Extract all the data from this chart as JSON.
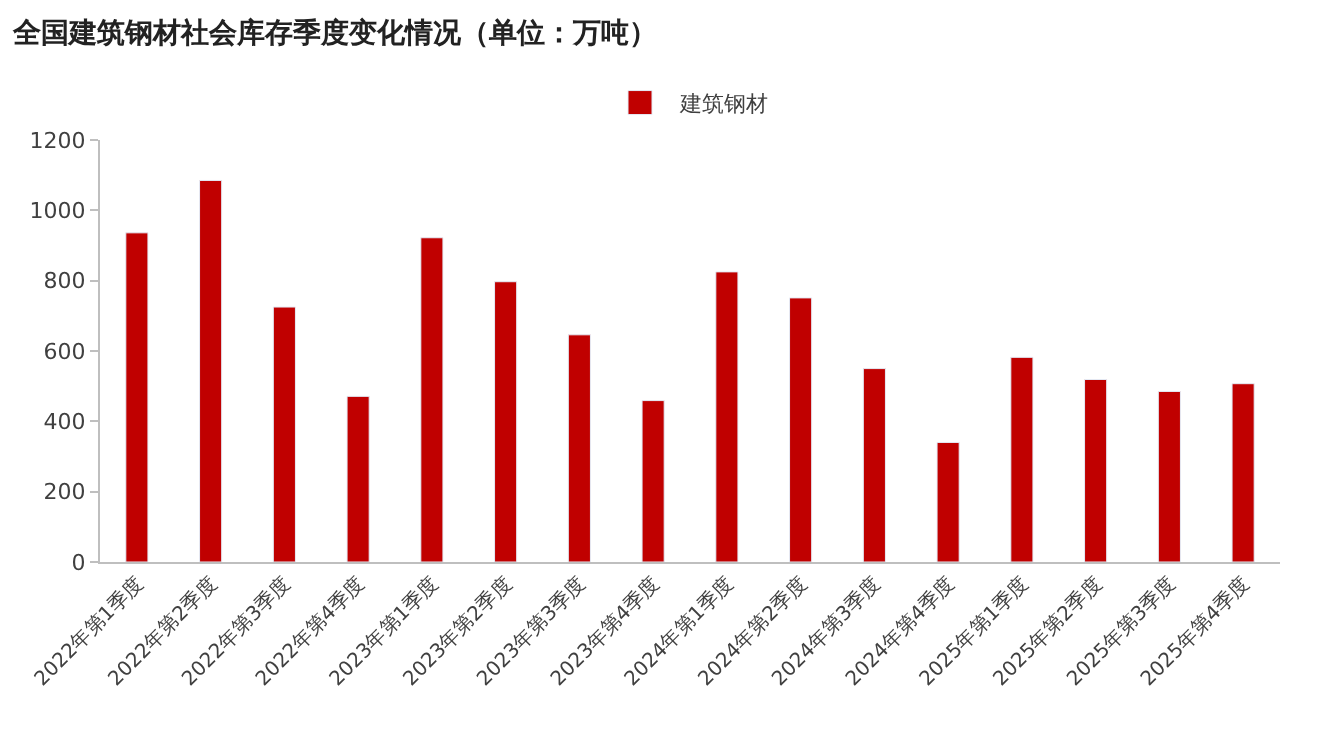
{
  "chart_data": {
    "type": "bar",
    "title": "全国建筑钢材社会库存季度变化情况（单位：万吨）",
    "categories": [
      "2022年第1季度",
      "2022年第2季度",
      "2022年第3季度",
      "2022年第4季度",
      "2023年第1季度",
      "2023年第2季度",
      "2023年第3季度",
      "2023年第4季度",
      "2024年第1季度",
      "2024年第2季度",
      "2024年第3季度",
      "2024年第4季度",
      "2025年第1季度",
      "2025年第2季度",
      "2025年第3季度",
      "2025年第4季度"
    ],
    "series": [
      {
        "name": "建筑钢材",
        "color": "#c00000",
        "values": [
          936,
          1085,
          725,
          471,
          922,
          797,
          646,
          459,
          825,
          751,
          550,
          340,
          582,
          519,
          485,
          507
        ]
      }
    ],
    "ylim": [
      0,
      1200
    ],
    "yticks": [
      0,
      200,
      400,
      600,
      800,
      1000,
      1200
    ],
    "legend": "top"
  }
}
